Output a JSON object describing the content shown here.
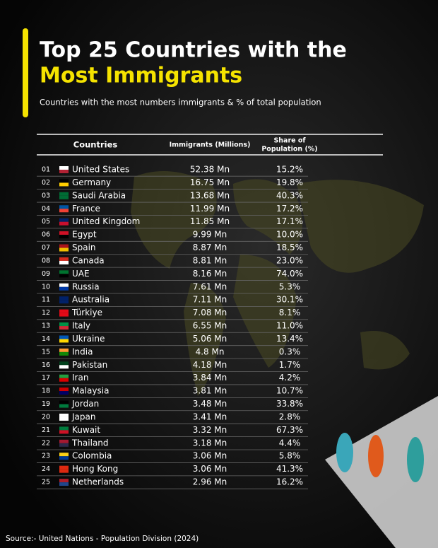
{
  "header": {
    "title_line1": "Top 25 Countries with the",
    "title_line2": "Most Immigrants",
    "subtitle": "Countries with the most numbers immigrants & % of total population"
  },
  "table": {
    "columns": [
      "Countries",
      "Immigrants (Millions)",
      [
        "Share of",
        "Population (%)"
      ]
    ],
    "rows": [
      [
        "01",
        "United States",
        "52.38 Mn",
        "15.2%"
      ],
      [
        "02",
        "Germany",
        "16.75 Mn",
        "19.8%"
      ],
      [
        "03",
        "Saudi Arabia",
        "13.68 Mn",
        "40.3%"
      ],
      [
        "04",
        "France",
        "11.99 Mn",
        "17.2%"
      ],
      [
        "05",
        "United Kingdom",
        "11.85 Mn",
        "17.1%"
      ],
      [
        "06",
        "Egypt",
        "9.99 Mn",
        "10.0%"
      ],
      [
        "07",
        "Spain",
        "8.87 Mn",
        "18.5%"
      ],
      [
        "08",
        "Canada",
        "8.81 Mn",
        "23.0%"
      ],
      [
        "09",
        "UAE",
        "8.16 Mn",
        "74.0%"
      ],
      [
        "10",
        "Russia",
        "7.61 Mn",
        "5.3%"
      ],
      [
        "11",
        "Australia",
        "7.11 Mn",
        "30.1%"
      ],
      [
        "12",
        "Türkiye",
        "7.08 Mn",
        "8.1%"
      ],
      [
        "13",
        "Italy",
        "6.55 Mn",
        "11.0%"
      ],
      [
        "14",
        "Ukraine",
        "5.06 Mn",
        "13.4%"
      ],
      [
        "15",
        "India",
        "4.8 Mn",
        "0.3%"
      ],
      [
        "16",
        "Pakistan",
        "4.18 Mn",
        "1.7%"
      ],
      [
        "17",
        "Iran",
        "3.84 Mn",
        "4.2%"
      ],
      [
        "18",
        "Malaysia",
        "3.81 Mn",
        "10.7%"
      ],
      [
        "19",
        "Jordan",
        "3.48 Mn",
        "33.8%"
      ],
      [
        "20",
        "Japan",
        "3.41 Mn",
        "2.8%"
      ],
      [
        "21",
        "Kuwait",
        "3.32 Mn",
        "67.3%"
      ],
      [
        "22",
        "Thailand",
        "3.18 Mn",
        "4.4%"
      ],
      [
        "23",
        "Colombia",
        "3.06 Mn",
        "5.8%"
      ],
      [
        "24",
        "Hong Kong",
        "3.06 Mn",
        "41.3%"
      ],
      [
        "25",
        "Netherlands",
        "2.96 Mn",
        "16.2%"
      ]
    ]
  },
  "footer": {
    "source": "Source:- United Nations - Population Division (2024)"
  }
}
